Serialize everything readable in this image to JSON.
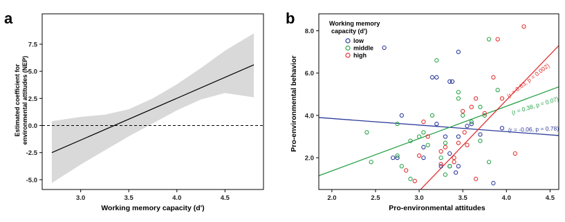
{
  "colors": {
    "low": "#2b3a9a",
    "middle": "#2aa34a",
    "high": "#e03030",
    "band": "#d9d9d9"
  },
  "chart_data": [
    {
      "panel": "a",
      "type": "line",
      "xlabel": "Working memory capacity (d')",
      "ylabel": [
        "Estimated coefficient for",
        "environmental attitudes (NEP)"
      ],
      "xlim": [
        2.6,
        4.9
      ],
      "ylim": [
        -5.9,
        10.3
      ],
      "xticks": [
        "3.0",
        "3.5",
        "4.0",
        "4.5"
      ],
      "yticks": [
        "7.5",
        "5.0",
        "2.5",
        "0.0",
        "-2.5",
        "-5.0"
      ],
      "xtick_values": [
        3.0,
        3.5,
        4.0,
        4.5
      ],
      "ytick_values": [
        7.5,
        5.0,
        2.5,
        0.0,
        -2.5,
        -5.0
      ],
      "estimate": {
        "x": [
          2.7,
          4.8
        ],
        "y": [
          -2.5,
          5.6
        ]
      },
      "ci": {
        "x": [
          2.7,
          3.0,
          3.25,
          3.5,
          3.75,
          4.0,
          4.25,
          4.5,
          4.8
        ],
        "lower": [
          -5.3,
          -3.6,
          -2.3,
          -1.0,
          0.2,
          1.4,
          2.4,
          3.0,
          2.6
        ],
        "upper": [
          0.4,
          0.8,
          1.0,
          1.5,
          2.5,
          3.8,
          5.3,
          6.9,
          8.5
        ]
      },
      "reference_line": 0.0,
      "grid": false
    },
    {
      "panel": "b",
      "type": "scatter",
      "xlabel": "Pro-environmental attitudes",
      "ylabel": "Pro-environmental behavior",
      "xlim": [
        1.85,
        4.6
      ],
      "ylim": [
        0.5,
        8.8
      ],
      "xticks": [
        "2.0",
        "2.5",
        "3.0",
        "3.5",
        "4.0",
        "4.5"
      ],
      "yticks": [
        "8.0",
        "6.0",
        "4.0",
        "2.0"
      ],
      "xtick_values": [
        2.0,
        2.5,
        3.0,
        3.5,
        4.0,
        4.5
      ],
      "ytick_values": [
        8.0,
        6.0,
        4.0,
        2.0
      ],
      "legend": {
        "title": [
          "Working memory",
          "capacity (d')"
        ],
        "placement": "top-left",
        "entries": [
          "low",
          "middle",
          "high"
        ]
      },
      "series": [
        {
          "name": "low",
          "points": [
            [
              2.6,
              7.2
            ],
            [
              3.45,
              7.0
            ],
            [
              3.15,
              5.8
            ],
            [
              3.2,
              5.8
            ],
            [
              3.35,
              5.6
            ],
            [
              3.38,
              5.6
            ],
            [
              2.8,
              4.0
            ],
            [
              3.2,
              3.6
            ],
            [
              3.55,
              3.5
            ],
            [
              3.45,
              3.0
            ],
            [
              3.3,
              3.0
            ],
            [
              3.35,
              2.2
            ],
            [
              3.7,
              3.1
            ],
            [
              3.95,
              3.4
            ],
            [
              2.75,
              2.0
            ],
            [
              2.7,
              2.0
            ],
            [
              3.05,
              2.0
            ],
            [
              3.25,
              1.6
            ],
            [
              3.35,
              1.6
            ],
            [
              3.45,
              1.6
            ],
            [
              3.42,
              1.3
            ],
            [
              3.85,
              0.8
            ],
            [
              3.05,
              2.5
            ],
            [
              3.6,
              3.6
            ]
          ],
          "fit": {
            "x": [
              1.85,
              4.6
            ],
            "y": [
              3.9,
              3.05
            ]
          },
          "annotation": "(r = -0.06, p = 0.78)"
        },
        {
          "name": "middle",
          "points": [
            [
              2.4,
              3.2
            ],
            [
              2.45,
              1.8
            ],
            [
              2.75,
              3.6
            ],
            [
              2.75,
              2.1
            ],
            [
              2.8,
              1.6
            ],
            [
              2.9,
              1.0
            ],
            [
              2.9,
              2.8
            ],
            [
              3.0,
              3.0
            ],
            [
              3.05,
              3.2
            ],
            [
              3.1,
              2.6
            ],
            [
              3.15,
              4.0
            ],
            [
              3.2,
              6.6
            ],
            [
              3.25,
              2.0
            ],
            [
              3.3,
              2.7
            ],
            [
              3.35,
              1.6
            ],
            [
              3.45,
              4.8
            ],
            [
              3.45,
              5.1
            ],
            [
              3.5,
              4.0
            ],
            [
              3.6,
              3.7
            ],
            [
              3.7,
              4.4
            ],
            [
              3.75,
              4.0
            ],
            [
              3.8,
              7.6
            ],
            [
              3.9,
              5.2
            ],
            [
              3.7,
              2.8
            ],
            [
              3.8,
              1.8
            ],
            [
              3.3,
              1.2
            ]
          ],
          "fit": {
            "x": [
              1.85,
              4.6
            ],
            "y": [
              1.15,
              5.35
            ]
          },
          "annotation": "(r = 0.38, p = 0.07)"
        },
        {
          "name": "high",
          "points": [
            [
              2.95,
              0.9
            ],
            [
              3.0,
              2.1
            ],
            [
              3.1,
              3.0
            ],
            [
              3.25,
              2.3
            ],
            [
              3.3,
              2.5
            ],
            [
              3.5,
              4.2
            ],
            [
              3.52,
              3.2
            ],
            [
              3.6,
              4.4
            ],
            [
              3.65,
              4.8
            ],
            [
              3.75,
              4.1
            ],
            [
              3.85,
              5.8
            ],
            [
              3.9,
              7.6
            ],
            [
              3.95,
              4.8
            ],
            [
              4.1,
              2.2
            ],
            [
              4.2,
              8.2
            ],
            [
              3.25,
              1.7
            ],
            [
              3.4,
              1.8
            ],
            [
              3.55,
              2.6
            ],
            [
              3.65,
              1.0
            ],
            [
              2.85,
              1.4
            ],
            [
              3.05,
              3.7
            ],
            [
              3.45,
              2.7
            ],
            [
              3.4,
              2.0
            ]
          ],
          "fit": {
            "x": [
              2.9,
              4.6
            ],
            "y": [
              0.0,
              7.3
            ]
          },
          "annotation": "(r = 0.63, p = 0.002)"
        }
      ],
      "grid": false
    }
  ]
}
